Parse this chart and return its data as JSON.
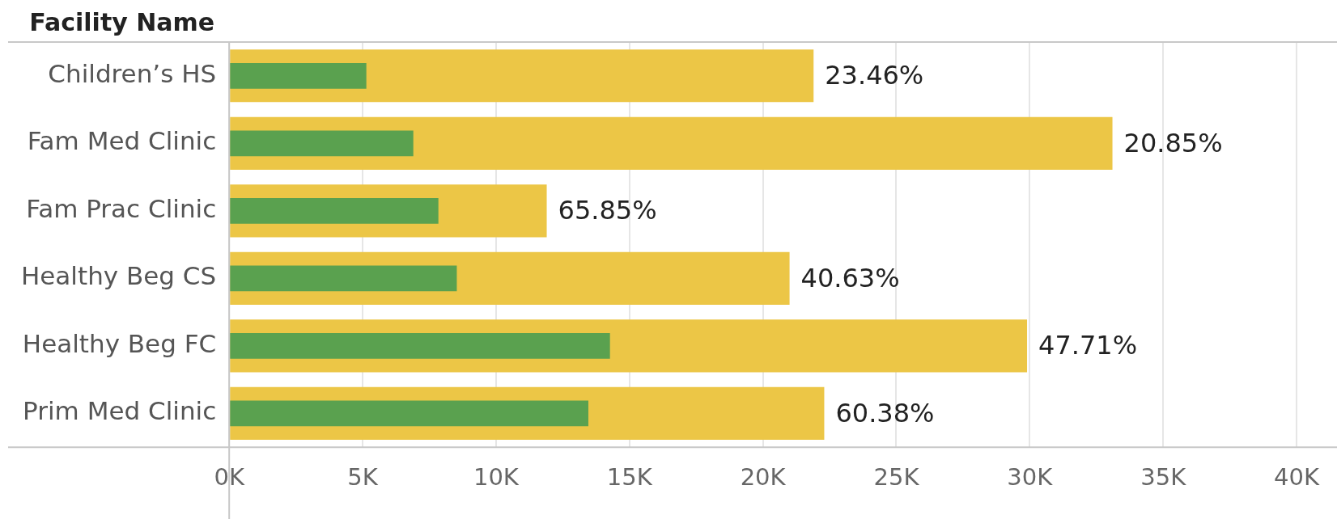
{
  "chart_data": {
    "type": "bar",
    "orientation": "horizontal",
    "ylabel": "Facility Name",
    "categories": [
      "Children’s HS",
      "Fam Med Clinic",
      "Fam Prac Clinic",
      "Healthy Beg CS",
      "Healthy Beg FC",
      "Prim Med Clinic"
    ],
    "series": [
      {
        "color": "#ecc646",
        "values": [
          21900,
          33100,
          11900,
          21000,
          29900,
          22300
        ]
      },
      {
        "color": "#5aa14f",
        "values": [
          5140,
          6900,
          7840,
          8530,
          14270,
          13460
        ]
      }
    ],
    "annotations": [
      {
        "text": "23.46%",
        "x": 21900,
        "y": "Children’s HS"
      },
      {
        "text": "20.85%",
        "x": 33100,
        "y": "Fam Med Clinic"
      },
      {
        "text": "65.85%",
        "x": 11900,
        "y": "Fam Prac Clinic"
      },
      {
        "text": "40.63%",
        "x": 21000,
        "y": "Healthy Beg CS"
      },
      {
        "text": "47.71%",
        "x": 29900,
        "y": "Healthy Beg FC"
      },
      {
        "text": "60.38%",
        "x": 22300,
        "y": "Prim Med Clinic"
      }
    ],
    "xlim": [
      0,
      40000
    ],
    "xticks": [
      {
        "value": 0,
        "label": "0K"
      },
      {
        "value": 5000,
        "label": "5K"
      },
      {
        "value": 10000,
        "label": "10K"
      },
      {
        "value": 15000,
        "label": "15K"
      },
      {
        "value": 20000,
        "label": "20K"
      },
      {
        "value": 25000,
        "label": "25K"
      },
      {
        "value": 30000,
        "label": "30K"
      },
      {
        "value": 35000,
        "label": "35K"
      },
      {
        "value": 40000,
        "label": "40K"
      }
    ],
    "grid": "x",
    "legend": false
  }
}
